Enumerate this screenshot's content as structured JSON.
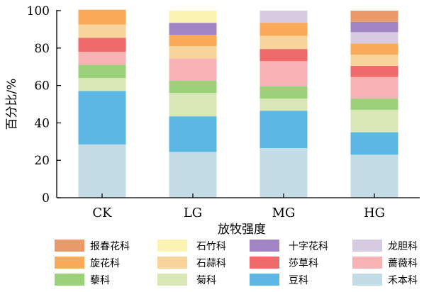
{
  "chart_data": {
    "type": "bar",
    "stacked": true,
    "xlabel": "放牧强度",
    "ylabel": "百分比/%",
    "ylim": [
      0,
      100
    ],
    "yticks": [
      0,
      20,
      40,
      60,
      80,
      100
    ],
    "categories": [
      "CK",
      "LG",
      "MG",
      "HG"
    ],
    "series": [
      {
        "name": "禾本科",
        "color": "#c2dde6",
        "values": [
          28.5,
          24.5,
          26.5,
          23
        ]
      },
      {
        "name": "豆科",
        "color": "#5bb7e3",
        "values": [
          28.5,
          19,
          20,
          12
        ]
      },
      {
        "name": "菊科",
        "color": "#d9e6b6",
        "values": [
          7,
          12.5,
          6.5,
          12
        ]
      },
      {
        "name": "藜科",
        "color": "#9ad179",
        "values": [
          7,
          6.5,
          6.5,
          6
        ]
      },
      {
        "name": "蔷薇科",
        "color": "#f7b3b3",
        "values": [
          7,
          12,
          13.5,
          11.5
        ]
      },
      {
        "name": "莎草科",
        "color": "#ef6b6b",
        "values": [
          7.5,
          0,
          6.5,
          6
        ]
      },
      {
        "name": "石蒜科",
        "color": "#f8d49b",
        "values": [
          7,
          6.5,
          7,
          6
        ]
      },
      {
        "name": "旋花科",
        "color": "#f9ab5a",
        "values": [
          8,
          6,
          7,
          6
        ]
      },
      {
        "name": "龙胆科",
        "color": "#d6cbe0",
        "values": [
          0,
          0,
          6.5,
          6
        ]
      },
      {
        "name": "十字花科",
        "color": "#a184c4",
        "values": [
          0,
          6.5,
          0,
          5.5
        ]
      },
      {
        "name": "石竹科",
        "color": "#fbf3b1",
        "values": [
          0,
          6.5,
          0,
          0
        ]
      },
      {
        "name": "报春花科",
        "color": "#e99a68",
        "values": [
          0,
          0,
          0,
          6
        ]
      }
    ],
    "legend": {
      "position": "bottom",
      "order": [
        "报春花科",
        "石竹科",
        "十字花科",
        "龙胆科",
        "旋花科",
        "石蒜科",
        "莎草科",
        "蔷薇科",
        "藜科",
        "菊科",
        "豆科",
        "禾本科"
      ]
    }
  }
}
